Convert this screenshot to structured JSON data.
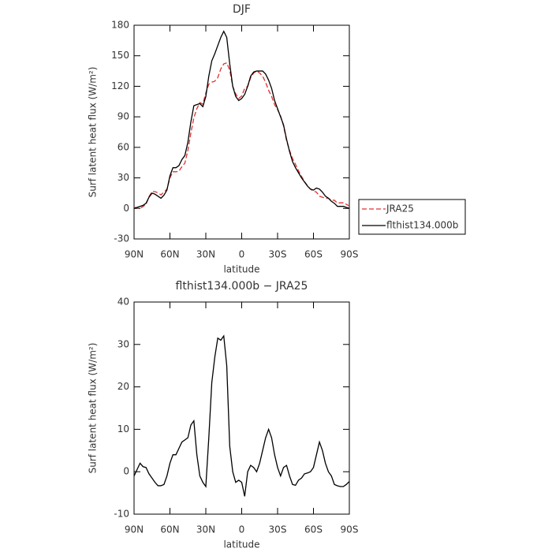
{
  "chart_data": [
    {
      "type": "line",
      "title": "DJF",
      "xlabel": "latitude",
      "ylabel": "Surf latent heat flux (W/m²)",
      "x": [
        90,
        87.5,
        85,
        82.5,
        80,
        77.5,
        75,
        72.5,
        70,
        67.5,
        65,
        62.5,
        60,
        57.5,
        55,
        52.5,
        50,
        47.5,
        45,
        42.5,
        40,
        37.5,
        35,
        32.5,
        30,
        27.5,
        25,
        22.5,
        20,
        17.5,
        15,
        12.5,
        10,
        7.5,
        5,
        2.5,
        0,
        -2.5,
        -5,
        -7.5,
        -10,
        -12.5,
        -15,
        -17.5,
        -20,
        -22.5,
        -25,
        -27.5,
        -30,
        -32.5,
        -35,
        -37.5,
        -40,
        -42.5,
        -45,
        -47.5,
        -50,
        -52.5,
        -55,
        -57.5,
        -60,
        -62.5,
        -65,
        -67.5,
        -70,
        -72.5,
        -75,
        -77.5,
        -80,
        -82.5,
        -85,
        -87.5,
        -90
      ],
      "series": [
        {
          "name": "JRA25",
          "color": "#e03030",
          "dash": "dashed",
          "values": [
            1,
            0.5,
            0,
            1.8,
            4,
            11.5,
            16.5,
            16.5,
            15.3,
            13.3,
            16,
            19,
            30,
            36,
            36,
            36.5,
            41,
            44.5,
            57,
            74,
            89,
            98,
            104,
            102.5,
            113.5,
            122,
            124,
            125,
            128.5,
            137,
            142,
            143,
            136,
            120,
            112.5,
            108,
            110.5,
            117.8,
            120,
            128.5,
            133,
            135,
            133,
            130,
            124,
            116,
            110,
            102,
            97,
            91,
            81,
            66.5,
            57,
            49,
            43.2,
            37,
            31.5,
            26.5,
            22.3,
            19,
            17,
            16,
            12,
            11,
            10,
            10,
            8,
            8,
            5.3,
            5.5,
            5.5,
            4,
            2.3
          ]
        },
        {
          "name": "flthist134.000b",
          "color": "#000000",
          "values": [
            0,
            1,
            2,
            3,
            5,
            11,
            15,
            14,
            12,
            10,
            13,
            18,
            32,
            40,
            40,
            42,
            48,
            52,
            65,
            85,
            101,
            102,
            103,
            100,
            110,
            130,
            145,
            152,
            160,
            168,
            174,
            168,
            142,
            120,
            110,
            106,
            108,
            112,
            120,
            130,
            134,
            135,
            135,
            135,
            132,
            126,
            118,
            106,
            98,
            90,
            82,
            68,
            56,
            46,
            40,
            35,
            30,
            26,
            22,
            19,
            18,
            20,
            19,
            16,
            12,
            10,
            7,
            5,
            2,
            2,
            2,
            1,
            0
          ]
        }
      ],
      "xlim": [
        90,
        -90
      ],
      "xticks": [
        {
          "value": 90,
          "label": "90N"
        },
        {
          "value": 60,
          "label": "60N"
        },
        {
          "value": 30,
          "label": "30N"
        },
        0,
        {
          "value": -30,
          "label": "30S"
        },
        {
          "value": -60,
          "label": "60S"
        },
        {
          "value": -90,
          "label": "90S"
        }
      ],
      "ylim": [
        -30,
        180
      ],
      "yticks": [
        -30,
        0,
        30,
        60,
        90,
        120,
        150,
        180
      ],
      "legend": "outside right"
    },
    {
      "type": "line",
      "title": "flthist134.000b − JRA25",
      "xlabel": "latitude",
      "ylabel": "Surf latent heat flux (W/m²)",
      "x": [
        90,
        87.5,
        85,
        82.5,
        80,
        77.5,
        75,
        72.5,
        70,
        67.5,
        65,
        62.5,
        60,
        57.5,
        55,
        52.5,
        50,
        47.5,
        45,
        42.5,
        40,
        37.5,
        35,
        32.5,
        30,
        27.5,
        25,
        22.5,
        20,
        17.5,
        15,
        12.5,
        10,
        7.5,
        5,
        2.5,
        0,
        -2.5,
        -5,
        -7.5,
        -10,
        -12.5,
        -15,
        -17.5,
        -20,
        -22.5,
        -25,
        -27.5,
        -30,
        -32.5,
        -35,
        -37.5,
        -40,
        -42.5,
        -45,
        -47.5,
        -50,
        -52.5,
        -55,
        -57.5,
        -60,
        -62.5,
        -65,
        -67.5,
        -70,
        -72.5,
        -75,
        -77.5,
        -80,
        -82.5,
        -85,
        -87.5,
        -90
      ],
      "series": [
        {
          "color": "#000000",
          "values": [
            -1,
            0.5,
            2,
            1.2,
            1,
            -0.5,
            -1.5,
            -2.5,
            -3.3,
            -3.3,
            -3,
            -1,
            2,
            4,
            4,
            5.5,
            7,
            7.5,
            8,
            11,
            12,
            4,
            -1,
            -2.5,
            -3.5,
            8,
            21,
            27,
            31.5,
            31,
            32,
            25,
            6,
            0,
            -2.5,
            -2,
            -2.5,
            -5.8,
            0,
            1.5,
            1,
            0,
            2,
            5,
            8,
            10,
            8,
            4,
            1,
            -1,
            1,
            1.5,
            -1,
            -3,
            -3.2,
            -2,
            -1.5,
            -0.5,
            -0.3,
            0,
            1,
            4,
            7,
            5,
            2,
            0,
            -1,
            -3,
            -3.3,
            -3.5,
            -3.5,
            -3,
            -2.3
          ]
        }
      ],
      "xlim": [
        90,
        -90
      ],
      "xticks": [
        {
          "value": 90,
          "label": "90N"
        },
        {
          "value": 60,
          "label": "60N"
        },
        {
          "value": 30,
          "label": "30N"
        },
        0,
        {
          "value": -30,
          "label": "30S"
        },
        {
          "value": -60,
          "label": "60S"
        },
        {
          "value": -90,
          "label": "90S"
        }
      ],
      "ylim": [
        -10,
        40
      ],
      "yticks": [
        -10,
        0,
        10,
        20,
        30,
        40
      ]
    }
  ]
}
